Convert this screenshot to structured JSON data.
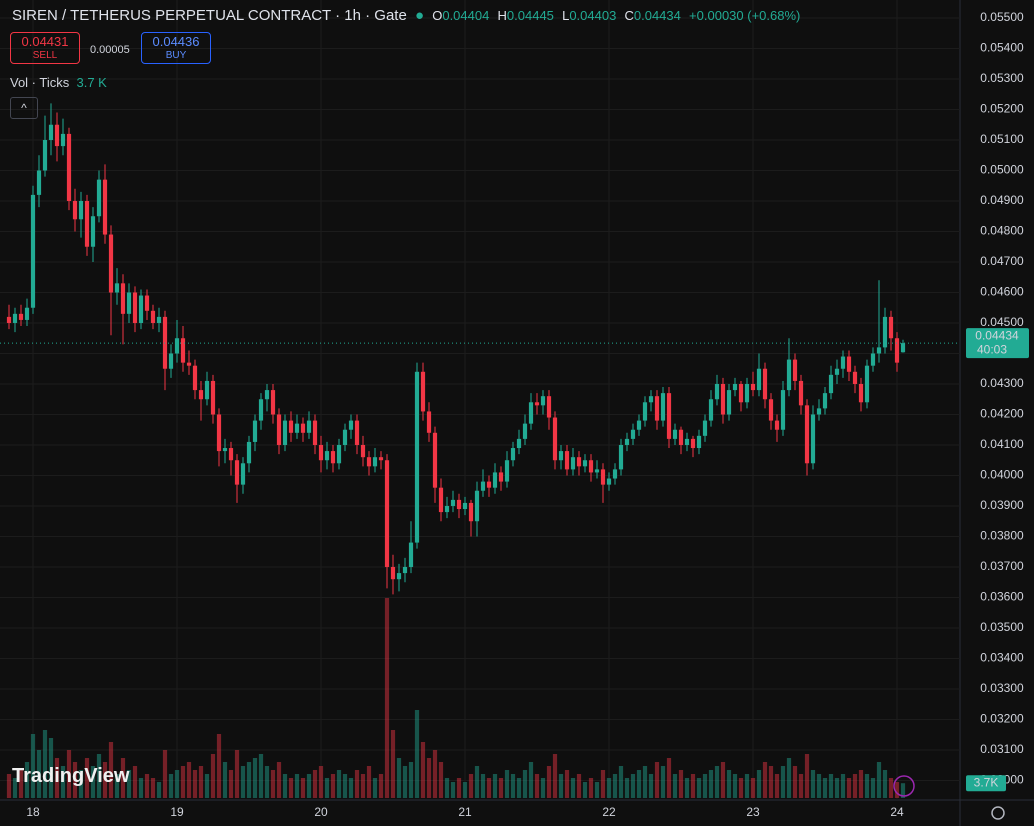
{
  "header": {
    "title": "SIREN / TETHERUS PERPETUAL CONTRACT · 1h · Gate",
    "o_label": "O",
    "o": "0.04404",
    "h_label": "H",
    "h": "0.04445",
    "l_label": "L",
    "l": "0.04403",
    "c_label": "C",
    "c": "0.04434",
    "change": "+0.00030 (+0.68%)",
    "sell_price": "0.04431",
    "sell": "SELL",
    "spread": "0.00005",
    "buy_price": "0.04436",
    "buy": "BUY",
    "volume_title": "Vol · Ticks",
    "volume_value": "3.7 K",
    "logo": "TradingView"
  },
  "chart_data": {
    "type": "candlestick",
    "up_color": "#22ab94",
    "down_color": "#f23645",
    "ylim": [
      0.02936,
      0.05559
    ],
    "yticks": [
      {
        "value": 0.03,
        "label": "0.03000"
      },
      {
        "value": 0.031,
        "label": "0.03100"
      },
      {
        "value": 0.032,
        "label": "0.03200"
      },
      {
        "value": 0.033,
        "label": "0.03300"
      },
      {
        "value": 0.034,
        "label": "0.03400"
      },
      {
        "value": 0.035,
        "label": "0.03500"
      },
      {
        "value": 0.036,
        "label": "0.03600"
      },
      {
        "value": 0.037,
        "label": "0.03700"
      },
      {
        "value": 0.038,
        "label": "0.03800"
      },
      {
        "value": 0.039,
        "label": "0.03900"
      },
      {
        "value": 0.04,
        "label": "0.04000"
      },
      {
        "value": 0.041,
        "label": "0.04100"
      },
      {
        "value": 0.042,
        "label": "0.04200"
      },
      {
        "value": 0.043,
        "label": "0.04300"
      },
      {
        "value": 0.044,
        "label": "0.04400"
      },
      {
        "value": 0.045,
        "label": "0.04500"
      },
      {
        "value": 0.046,
        "label": "0.04600"
      },
      {
        "value": 0.047,
        "label": "0.04700"
      },
      {
        "value": 0.048,
        "label": "0.04800"
      },
      {
        "value": 0.049,
        "label": "0.04900"
      },
      {
        "value": 0.05,
        "label": "0.05000"
      },
      {
        "value": 0.051,
        "label": "0.05100"
      },
      {
        "value": 0.052,
        "label": "0.05200"
      },
      {
        "value": 0.053,
        "label": "0.05300"
      },
      {
        "value": 0.054,
        "label": "0.05400"
      },
      {
        "value": 0.055,
        "label": "0.05500"
      }
    ],
    "xlim": [
      -1.5,
      158.5
    ],
    "xticks": [
      {
        "value": 4,
        "label": "18"
      },
      {
        "value": 28,
        "label": "19"
      },
      {
        "value": 52,
        "label": "20"
      },
      {
        "value": 76,
        "label": "21"
      },
      {
        "value": 100,
        "label": "22"
      },
      {
        "value": 124,
        "label": "23"
      },
      {
        "value": 148,
        "label": "24"
      }
    ],
    "grid": true,
    "last_price": {
      "value": 0.04434,
      "label": "0.04434"
    },
    "countdown": "40:03",
    "volume_tag": "3.7K",
    "candles": [
      [
        0.0452,
        0.0456,
        0.0448,
        0.045
      ],
      [
        0.045,
        0.0455,
        0.0447,
        0.0453
      ],
      [
        0.0453,
        0.0456,
        0.0449,
        0.0451
      ],
      [
        0.0451,
        0.0458,
        0.0449,
        0.0455
      ],
      [
        0.0455,
        0.0495,
        0.0453,
        0.0492
      ],
      [
        0.0492,
        0.0505,
        0.0488,
        0.05
      ],
      [
        0.05,
        0.0518,
        0.0498,
        0.051
      ],
      [
        0.051,
        0.0522,
        0.0505,
        0.0515
      ],
      [
        0.0515,
        0.0519,
        0.0503,
        0.0508
      ],
      [
        0.0508,
        0.0517,
        0.0505,
        0.0512
      ],
      [
        0.0512,
        0.0514,
        0.0487,
        0.049
      ],
      [
        0.049,
        0.0494,
        0.048,
        0.0484
      ],
      [
        0.0484,
        0.0493,
        0.0478,
        0.049
      ],
      [
        0.049,
        0.0492,
        0.0472,
        0.0475
      ],
      [
        0.0475,
        0.0488,
        0.047,
        0.0485
      ],
      [
        0.0485,
        0.05,
        0.0483,
        0.0497
      ],
      [
        0.0497,
        0.0502,
        0.0476,
        0.0479
      ],
      [
        0.0479,
        0.0482,
        0.0446,
        0.046
      ],
      [
        0.046,
        0.0468,
        0.0456,
        0.0463
      ],
      [
        0.0463,
        0.0466,
        0.0443,
        0.0453
      ],
      [
        0.0453,
        0.0463,
        0.045,
        0.046
      ],
      [
        0.046,
        0.0462,
        0.0447,
        0.045
      ],
      [
        0.045,
        0.0461,
        0.0448,
        0.0459
      ],
      [
        0.0459,
        0.0461,
        0.0451,
        0.0454
      ],
      [
        0.0454,
        0.0456,
        0.0448,
        0.045
      ],
      [
        0.045,
        0.0455,
        0.0447,
        0.0452
      ],
      [
        0.0452,
        0.0454,
        0.0428,
        0.0435
      ],
      [
        0.0435,
        0.0443,
        0.0432,
        0.044
      ],
      [
        0.044,
        0.0451,
        0.0437,
        0.0445
      ],
      [
        0.0445,
        0.0449,
        0.0434,
        0.0437
      ],
      [
        0.0437,
        0.0441,
        0.0433,
        0.0436
      ],
      [
        0.0436,
        0.0438,
        0.0425,
        0.0428
      ],
      [
        0.0428,
        0.0431,
        0.0418,
        0.0425
      ],
      [
        0.0425,
        0.0434,
        0.0423,
        0.0431
      ],
      [
        0.0431,
        0.0433,
        0.0417,
        0.042
      ],
      [
        0.042,
        0.0422,
        0.0403,
        0.0408
      ],
      [
        0.0408,
        0.0412,
        0.0404,
        0.0409
      ],
      [
        0.0409,
        0.0411,
        0.04,
        0.0405
      ],
      [
        0.0405,
        0.0407,
        0.0391,
        0.0397
      ],
      [
        0.0397,
        0.0406,
        0.0394,
        0.0404
      ],
      [
        0.0404,
        0.0413,
        0.0401,
        0.0411
      ],
      [
        0.0411,
        0.042,
        0.0408,
        0.0418
      ],
      [
        0.0418,
        0.0427,
        0.0415,
        0.0425
      ],
      [
        0.0425,
        0.043,
        0.0421,
        0.0428
      ],
      [
        0.0428,
        0.043,
        0.0417,
        0.042
      ],
      [
        0.042,
        0.0422,
        0.0407,
        0.041
      ],
      [
        0.041,
        0.042,
        0.0408,
        0.0418
      ],
      [
        0.0418,
        0.0421,
        0.0411,
        0.0414
      ],
      [
        0.0414,
        0.042,
        0.0412,
        0.0417
      ],
      [
        0.0417,
        0.0419,
        0.0411,
        0.0414
      ],
      [
        0.0414,
        0.0421,
        0.0412,
        0.0418
      ],
      [
        0.0418,
        0.042,
        0.0407,
        0.041
      ],
      [
        0.041,
        0.0413,
        0.0401,
        0.0405
      ],
      [
        0.0405,
        0.0411,
        0.0402,
        0.0408
      ],
      [
        0.0408,
        0.041,
        0.0401,
        0.0404
      ],
      [
        0.0404,
        0.0412,
        0.0402,
        0.041
      ],
      [
        0.041,
        0.0417,
        0.0408,
        0.0415
      ],
      [
        0.0415,
        0.042,
        0.0412,
        0.0418
      ],
      [
        0.0418,
        0.042,
        0.0407,
        0.041
      ],
      [
        0.041,
        0.0413,
        0.0403,
        0.0406
      ],
      [
        0.0406,
        0.0408,
        0.04,
        0.0403
      ],
      [
        0.0403,
        0.0409,
        0.0401,
        0.0406
      ],
      [
        0.0406,
        0.0408,
        0.0402,
        0.0405
      ],
      [
        0.0405,
        0.0407,
        0.0363,
        0.037
      ],
      [
        0.037,
        0.0374,
        0.0361,
        0.0366
      ],
      [
        0.0366,
        0.0371,
        0.0362,
        0.0368
      ],
      [
        0.0368,
        0.0373,
        0.0365,
        0.037
      ],
      [
        0.037,
        0.0385,
        0.0368,
        0.0378
      ],
      [
        0.0378,
        0.0437,
        0.0376,
        0.0434
      ],
      [
        0.0434,
        0.0437,
        0.0418,
        0.0421
      ],
      [
        0.0421,
        0.0424,
        0.0411,
        0.0414
      ],
      [
        0.0414,
        0.0416,
        0.0391,
        0.0396
      ],
      [
        0.0396,
        0.0399,
        0.0385,
        0.0388
      ],
      [
        0.0388,
        0.0393,
        0.0386,
        0.039
      ],
      [
        0.039,
        0.0395,
        0.0388,
        0.0392
      ],
      [
        0.0392,
        0.0394,
        0.0386,
        0.0389
      ],
      [
        0.0389,
        0.0393,
        0.0387,
        0.0391
      ],
      [
        0.0391,
        0.0392,
        0.038,
        0.0385
      ],
      [
        0.0385,
        0.0398,
        0.038,
        0.0395
      ],
      [
        0.0395,
        0.0402,
        0.0393,
        0.0398
      ],
      [
        0.0398,
        0.04,
        0.0393,
        0.0396
      ],
      [
        0.0396,
        0.0404,
        0.0394,
        0.0401
      ],
      [
        0.0401,
        0.0403,
        0.0395,
        0.0398
      ],
      [
        0.0398,
        0.0408,
        0.0396,
        0.0405
      ],
      [
        0.0405,
        0.0411,
        0.0403,
        0.0409
      ],
      [
        0.0409,
        0.0415,
        0.0407,
        0.0412
      ],
      [
        0.0412,
        0.042,
        0.041,
        0.0417
      ],
      [
        0.0417,
        0.0427,
        0.0415,
        0.0424
      ],
      [
        0.0424,
        0.0427,
        0.042,
        0.0423
      ],
      [
        0.0423,
        0.0428,
        0.042,
        0.0426
      ],
      [
        0.0426,
        0.0428,
        0.0415,
        0.0419
      ],
      [
        0.0419,
        0.0421,
        0.0402,
        0.0405
      ],
      [
        0.0405,
        0.041,
        0.0402,
        0.0408
      ],
      [
        0.0408,
        0.041,
        0.04,
        0.0402
      ],
      [
        0.0402,
        0.0409,
        0.04,
        0.0406
      ],
      [
        0.0406,
        0.0408,
        0.04,
        0.0403
      ],
      [
        0.0403,
        0.0407,
        0.0401,
        0.0405
      ],
      [
        0.0405,
        0.0407,
        0.0398,
        0.0401
      ],
      [
        0.0401,
        0.0405,
        0.0399,
        0.0402
      ],
      [
        0.0402,
        0.0404,
        0.0391,
        0.0397
      ],
      [
        0.0397,
        0.0401,
        0.0395,
        0.0399
      ],
      [
        0.0399,
        0.0404,
        0.0397,
        0.0402
      ],
      [
        0.0402,
        0.0412,
        0.04,
        0.041
      ],
      [
        0.041,
        0.0414,
        0.0408,
        0.0412
      ],
      [
        0.0412,
        0.0417,
        0.041,
        0.0415
      ],
      [
        0.0415,
        0.042,
        0.0413,
        0.0418
      ],
      [
        0.0418,
        0.0426,
        0.0416,
        0.0424
      ],
      [
        0.0424,
        0.0428,
        0.0421,
        0.0426
      ],
      [
        0.0426,
        0.0428,
        0.0415,
        0.0418
      ],
      [
        0.0418,
        0.0429,
        0.0416,
        0.0427
      ],
      [
        0.0427,
        0.0429,
        0.0409,
        0.0412
      ],
      [
        0.0412,
        0.0417,
        0.041,
        0.0415
      ],
      [
        0.0415,
        0.0416,
        0.0407,
        0.041
      ],
      [
        0.041,
        0.0414,
        0.0408,
        0.0412
      ],
      [
        0.0412,
        0.0413,
        0.0406,
        0.0409
      ],
      [
        0.0409,
        0.0415,
        0.0407,
        0.0413
      ],
      [
        0.0413,
        0.042,
        0.0411,
        0.0418
      ],
      [
        0.0418,
        0.0428,
        0.0416,
        0.0425
      ],
      [
        0.0425,
        0.0433,
        0.0423,
        0.043
      ],
      [
        0.043,
        0.0432,
        0.0417,
        0.042
      ],
      [
        0.042,
        0.043,
        0.0418,
        0.0428
      ],
      [
        0.0428,
        0.0432,
        0.0426,
        0.043
      ],
      [
        0.043,
        0.0431,
        0.0421,
        0.0424
      ],
      [
        0.0424,
        0.0432,
        0.0422,
        0.043
      ],
      [
        0.043,
        0.0434,
        0.0426,
        0.0428
      ],
      [
        0.0428,
        0.044,
        0.0426,
        0.0435
      ],
      [
        0.0435,
        0.0437,
        0.0422,
        0.0425
      ],
      [
        0.0425,
        0.0427,
        0.0415,
        0.0418
      ],
      [
        0.0418,
        0.042,
        0.0411,
        0.0415
      ],
      [
        0.0415,
        0.0431,
        0.0413,
        0.0428
      ],
      [
        0.0428,
        0.0445,
        0.0426,
        0.0438
      ],
      [
        0.0438,
        0.044,
        0.0428,
        0.0431
      ],
      [
        0.0431,
        0.0433,
        0.042,
        0.0423
      ],
      [
        0.0423,
        0.0425,
        0.04,
        0.0404
      ],
      [
        0.0404,
        0.0423,
        0.0402,
        0.042
      ],
      [
        0.042,
        0.0425,
        0.0418,
        0.0422
      ],
      [
        0.0422,
        0.0429,
        0.042,
        0.0427
      ],
      [
        0.0427,
        0.0436,
        0.0425,
        0.0433
      ],
      [
        0.0433,
        0.0438,
        0.043,
        0.0435
      ],
      [
        0.0435,
        0.0441,
        0.0432,
        0.0439
      ],
      [
        0.0439,
        0.0441,
        0.0431,
        0.0434
      ],
      [
        0.0434,
        0.0436,
        0.0427,
        0.043
      ],
      [
        0.043,
        0.0432,
        0.0421,
        0.0424
      ],
      [
        0.0424,
        0.0438,
        0.0422,
        0.0436
      ],
      [
        0.0436,
        0.0442,
        0.0434,
        0.044
      ],
      [
        0.044,
        0.0464,
        0.0437,
        0.0442
      ],
      [
        0.0442,
        0.0455,
        0.044,
        0.0452
      ],
      [
        0.0452,
        0.0454,
        0.0441,
        0.0445
      ],
      [
        0.0445,
        0.0447,
        0.0434,
        0.0437
      ],
      [
        0.04404,
        0.04445,
        0.04403,
        0.04434
      ]
    ],
    "volume": [
      6000,
      5000,
      7000,
      9000,
      16000,
      12000,
      17000,
      15000,
      10000,
      8000,
      12000,
      9000,
      7000,
      10000,
      8000,
      11000,
      9000,
      14000,
      6000,
      10000,
      7000,
      8000,
      5000,
      6000,
      5000,
      4000,
      12000,
      6000,
      7000,
      8000,
      9000,
      7000,
      8000,
      6000,
      11000,
      16000,
      9000,
      7000,
      12000,
      8000,
      9000,
      10000,
      11000,
      8000,
      7000,
      9000,
      6000,
      5000,
      6000,
      5000,
      6000,
      7000,
      8000,
      5000,
      6000,
      7000,
      6000,
      5000,
      7000,
      6000,
      8000,
      5000,
      6000,
      50000,
      17000,
      10000,
      8000,
      9000,
      22000,
      14000,
      10000,
      12000,
      9000,
      5000,
      4000,
      5000,
      4000,
      6000,
      8000,
      6000,
      5000,
      6000,
      5000,
      7000,
      6000,
      5000,
      7000,
      9000,
      6000,
      5000,
      8000,
      11000,
      6000,
      7000,
      5000,
      6000,
      4000,
      5000,
      4000,
      7000,
      5000,
      6000,
      8000,
      5000,
      6000,
      7000,
      8000,
      6000,
      9000,
      8000,
      10000,
      6000,
      7000,
      5000,
      6000,
      5000,
      6000,
      7000,
      8000,
      9000,
      7000,
      6000,
      5000,
      6000,
      5000,
      7000,
      9000,
      8000,
      6000,
      8000,
      10000,
      8000,
      6000,
      11000,
      7000,
      6000,
      5000,
      6000,
      5000,
      6000,
      5000,
      6000,
      7000,
      6000,
      5000,
      9000,
      7000,
      5000,
      4000,
      3700
    ]
  }
}
